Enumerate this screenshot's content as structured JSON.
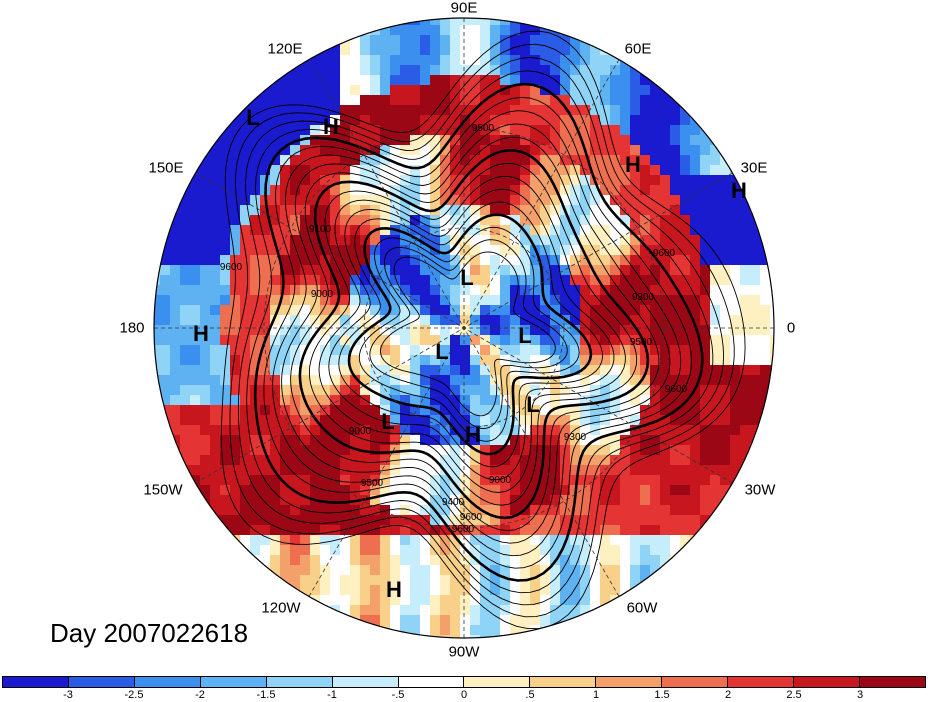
{
  "title": "Day 2007022618",
  "longitude_labels": {
    "lon_90e": "90E",
    "lon_60e": "60E",
    "lon_120e": "120E",
    "lon_30e": "30E",
    "lon_150e": "150E",
    "lon_180": "180",
    "lon_0": "0",
    "lon_150w": "150W",
    "lon_30w": "30W",
    "lon_120w": "120W",
    "lon_60w": "60W",
    "lon_90w": "90W"
  },
  "pressure_centers": [
    {
      "name": "high-1",
      "label": "H"
    },
    {
      "name": "high-2",
      "label": "H"
    },
    {
      "name": "high-3",
      "label": "H"
    },
    {
      "name": "high-4",
      "label": "H"
    },
    {
      "name": "high-5",
      "label": "H"
    },
    {
      "name": "high-6",
      "label": "H"
    },
    {
      "name": "low-1",
      "label": "L"
    },
    {
      "name": "low-2",
      "label": "L"
    },
    {
      "name": "low-3",
      "label": "L"
    },
    {
      "name": "low-4",
      "label": "L"
    },
    {
      "name": "low-5",
      "label": "L"
    },
    {
      "name": "low-6",
      "label": "L"
    }
  ],
  "contour_labels": [
    "9500",
    "9600",
    "9100",
    "9000",
    "9600",
    "9600",
    "9000",
    "9300",
    "9600",
    "9300",
    "9500",
    "9500",
    "9400",
    "9600",
    "9000"
  ],
  "colorbar": {
    "colors": [
      "#1a1acf",
      "#2b5ce6",
      "#3b8fee",
      "#5eb2f2",
      "#8fd4f7",
      "#c5edfb",
      "#ffffff",
      "#fff0c2",
      "#f8d08a",
      "#f4a06a",
      "#ee6f50",
      "#e43534",
      "#c8161f",
      "#9b0714"
    ],
    "labels": [
      "-3",
      "-2.5",
      "-2",
      "-1.5",
      "-1",
      "-.5",
      "0",
      ".5",
      "1",
      "1.5",
      "2",
      "2.5",
      "3"
    ]
  }
}
